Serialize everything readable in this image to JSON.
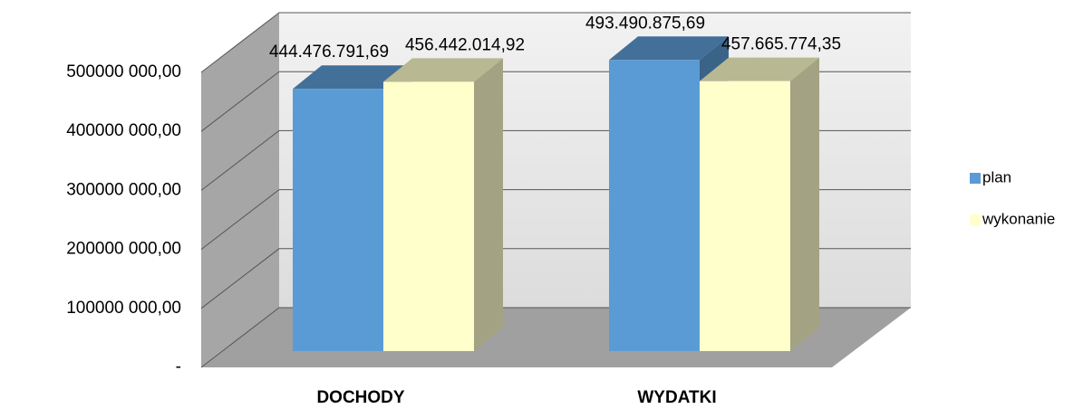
{
  "chart_data": {
    "type": "bar3d",
    "categories": [
      "DOCHODY",
      "WYDATKI"
    ],
    "series": [
      {
        "name": "plan",
        "color": "#5b9bd5",
        "values": [
          444476791.69,
          493490875.69
        ],
        "value_labels": [
          "444.476.791,69",
          "493.490.875,69"
        ]
      },
      {
        "name": "wykonanie",
        "color": "#ffffcc",
        "values": [
          456442014.92,
          457665774.35
        ],
        "value_labels": [
          "456.442.014,92",
          "457.665.774,35"
        ]
      }
    ],
    "ylim": [
      0,
      500000000
    ],
    "yticks": [
      {
        "value": 0,
        "label": "-"
      },
      {
        "value": 100000000,
        "label": "100000 000,00"
      },
      {
        "value": 200000000,
        "label": "200000 000,00"
      },
      {
        "value": 300000000,
        "label": "300000 000,00"
      },
      {
        "value": 400000000,
        "label": "400000 000,00"
      },
      {
        "value": 500000000,
        "label": "500000 000,00"
      }
    ],
    "grid": true,
    "legend": "right"
  }
}
